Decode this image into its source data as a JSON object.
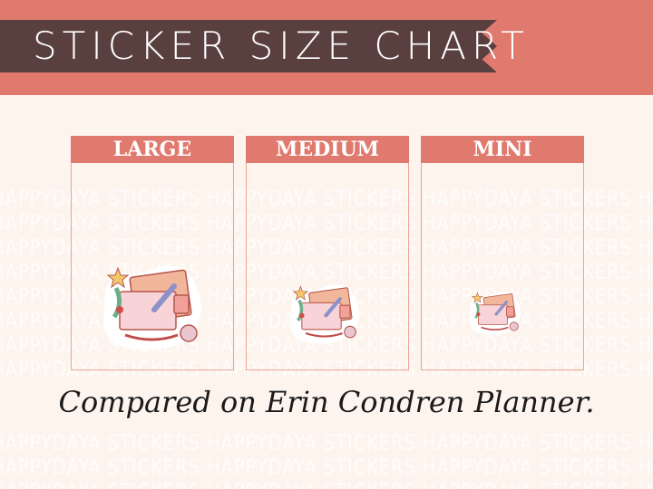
{
  "header": {
    "title": "STICKER SIZE CHART"
  },
  "watermark": "HAPPYDAYA STICKERS HAPPYDAYA STICKERS HAPPYDAYA STICKERS HAPPYDAYA STICKERS",
  "sizes": [
    {
      "label": "LARGE"
    },
    {
      "label": "MEDIUM"
    },
    {
      "label": "MINI"
    }
  ],
  "caption": "Compared on Erin Condren Planner.",
  "colors": {
    "banner": "#e07a6e",
    "title_bar": "#5a3f3f",
    "background": "#fdf4ee",
    "box_border": "#eea395"
  }
}
